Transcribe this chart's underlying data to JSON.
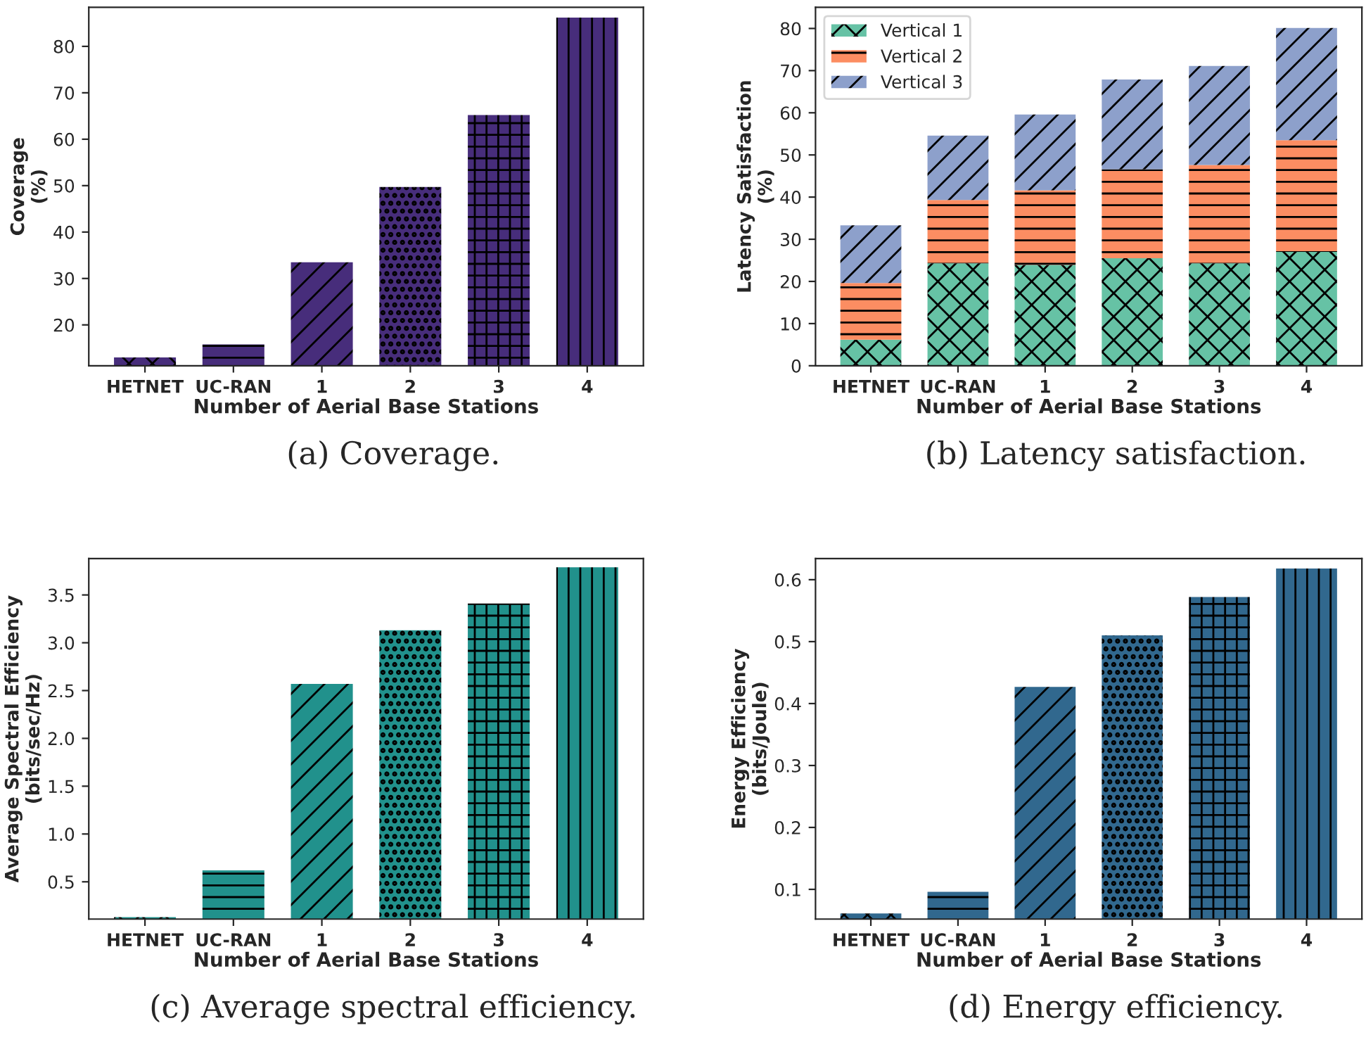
{
  "chart_data": [
    {
      "type": "bar",
      "categories": [
        "HETNET",
        "UC-RAN",
        "1",
        "2",
        "3",
        "4"
      ],
      "values": [
        13.0,
        15.8,
        33.5,
        49.7,
        65.2,
        86.2
      ],
      "color": "#472d7b",
      "xlabel": "Number of Aerial Base Stations",
      "ylabel": "Coverage\n(%)",
      "ylim": [
        11.2,
        88.4
      ],
      "yticks": [
        20,
        30,
        40,
        50,
        60,
        70,
        80
      ],
      "annotations": [
        "(a) Coverage."
      ]
    },
    {
      "type": "bar",
      "stacked": true,
      "categories": [
        "HETNET",
        "UC-RAN",
        "1",
        "2",
        "3",
        "4"
      ],
      "series": [
        {
          "name": "Vertical 1",
          "color": "#66c2a5",
          "values": [
            6.2,
            24.3,
            23.9,
            25.5,
            24.3,
            27.0
          ]
        },
        {
          "name": "Vertical 2",
          "color": "#fc8d62",
          "values": [
            13.4,
            15.0,
            17.7,
            21.1,
            23.3,
            26.5
          ]
        },
        {
          "name": "Vertical 3",
          "color": "#8da0cb",
          "values": [
            13.7,
            15.3,
            18.0,
            21.3,
            23.5,
            26.6
          ]
        }
      ],
      "xlabel": "Number of Aerial Base Stations",
      "ylabel": "Latency Satisfaction\n(%)",
      "ylim": [
        0,
        85
      ],
      "yticks": [
        0,
        10,
        20,
        30,
        40,
        50,
        60,
        70,
        80
      ],
      "legend": "top left",
      "annotations": [
        "(b) Latency satisfaction."
      ]
    },
    {
      "type": "bar",
      "categories": [
        "HETNET",
        "UC-RAN",
        "1",
        "2",
        "3",
        "4"
      ],
      "values": [
        0.13,
        0.62,
        2.57,
        3.13,
        3.41,
        3.79
      ],
      "color": "#21918c",
      "xlabel": "Number of Aerial Base Stations",
      "ylabel": "Average Spectral Efficiency\n(bits/sec/Hz)",
      "ylim": [
        0.11,
        3.88
      ],
      "yticks": [
        {
          "value": 0.5,
          "label": "0.5"
        },
        {
          "value": 1.0,
          "label": "1.0"
        },
        {
          "value": 1.5,
          "label": "1.5"
        },
        {
          "value": 2.0,
          "label": "2.0"
        },
        {
          "value": 2.5,
          "label": "2.5"
        },
        {
          "value": 3.0,
          "label": "3.0"
        },
        {
          "value": 3.5,
          "label": "3.5"
        }
      ],
      "annotations": [
        "(c) Average spectral efficiency."
      ]
    },
    {
      "type": "bar",
      "categories": [
        "HETNET",
        "UC-RAN",
        "1",
        "2",
        "3",
        "4"
      ],
      "values": [
        0.061,
        0.096,
        0.427,
        0.51,
        0.572,
        0.618
      ],
      "color": "#31688e",
      "xlabel": "Number of Aerial Base Stations",
      "ylabel": "Energy Efficiency\n(bits/Joule)",
      "ylim": [
        0.052,
        0.634
      ],
      "yticks": [
        0.1,
        0.2,
        0.3,
        0.4,
        0.5,
        0.6
      ],
      "annotations": [
        "(d) Energy efficiency."
      ]
    }
  ]
}
